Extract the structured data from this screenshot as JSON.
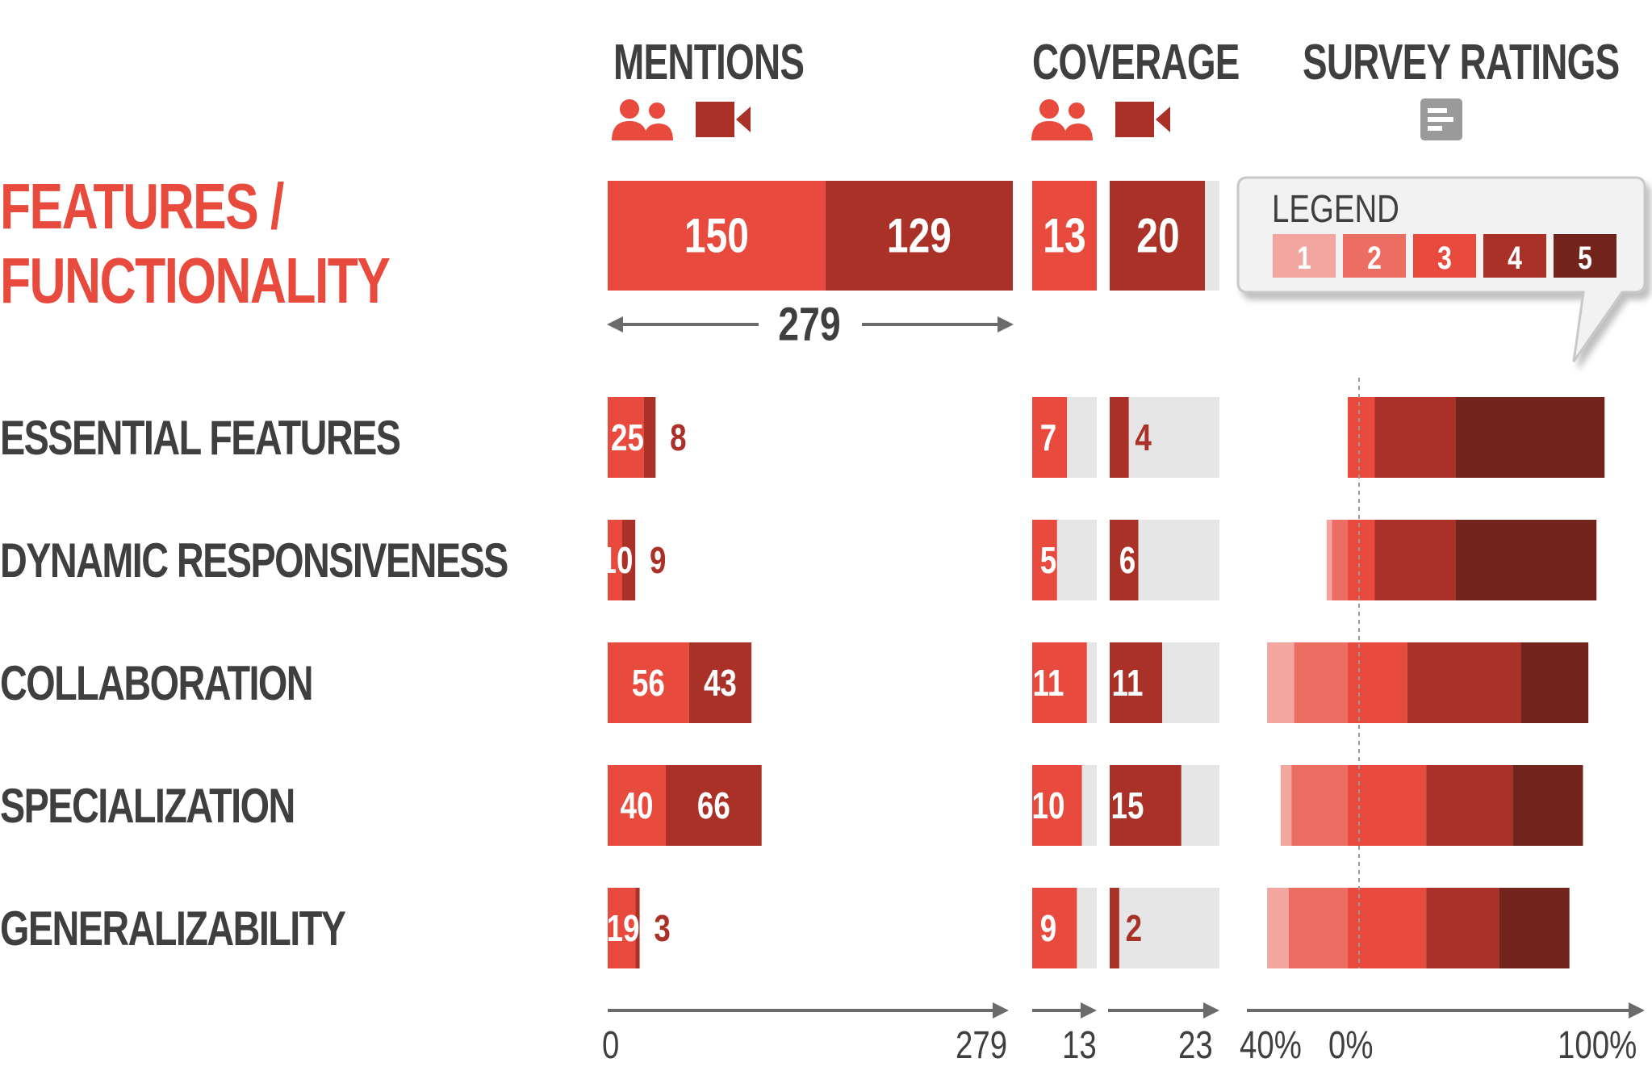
{
  "headers": {
    "mentions": "MENTIONS",
    "coverage": "COVERAGE",
    "survey": "SURVEY RATINGS"
  },
  "main_label": {
    "line1": "FEATURES /",
    "line2": "FUNCTIONALITY"
  },
  "total_mentions": "279",
  "legend": {
    "title": "LEGEND",
    "items": [
      "1",
      "2",
      "3",
      "4",
      "5"
    ]
  },
  "axes": {
    "mentions": {
      "min": "0",
      "max": "279"
    },
    "coverage_people": {
      "max": "13"
    },
    "coverage_video": {
      "max": "23"
    },
    "survey": {
      "left": "40%",
      "zero": "0%",
      "right": "100%"
    }
  },
  "colors": {
    "people": "#e84a3d",
    "video": "#aa3128",
    "coverage_bg": "#e6e6e6",
    "rating": [
      "#f3a5a0",
      "#ec6d62",
      "#e84a3d",
      "#aa3128",
      "#72231c"
    ],
    "text_dark": "#3f3f3f",
    "axis": "#6b6b6b"
  },
  "chart_data": {
    "type": "bar",
    "categories": [
      "FEATURES / FUNCTIONALITY",
      "ESSENTIAL FEATURES",
      "DYNAMIC RESPONSIVENESS",
      "COLLABORATION",
      "SPECIALIZATION",
      "GENERALIZABILITY"
    ],
    "mentions": {
      "max": 279,
      "people": [
        150,
        25,
        10,
        56,
        40,
        19
      ],
      "video": [
        129,
        8,
        9,
        43,
        66,
        3
      ]
    },
    "coverage": {
      "people_max": 13,
      "video_max": 23,
      "people": [
        13,
        7,
        5,
        11,
        10,
        9
      ],
      "video": [
        20,
        4,
        6,
        11,
        15,
        2
      ]
    },
    "survey_ratings": {
      "xlim": [
        -40,
        100
      ],
      "rows": [
        [
          -2,
          -2,
          10,
          30,
          55
        ],
        [
          -2,
          -10,
          10,
          30,
          52
        ],
        [
          -10,
          -24,
          22,
          42,
          25
        ],
        [
          -4,
          -25,
          29,
          32,
          26
        ],
        [
          -8,
          -26,
          29,
          27,
          26
        ]
      ]
    }
  }
}
